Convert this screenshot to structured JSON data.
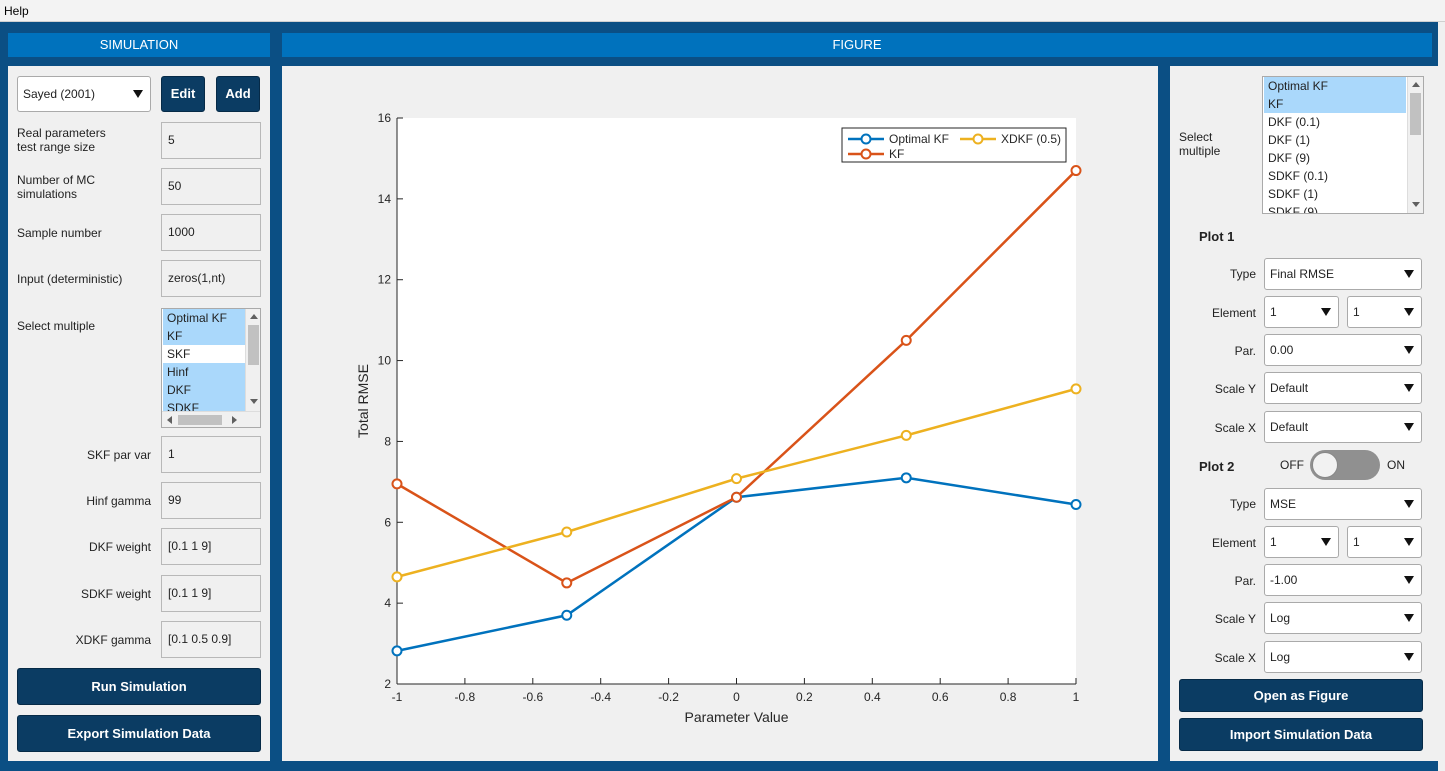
{
  "menu": {
    "help": "Help"
  },
  "headers": {
    "simulation": "SIMULATION",
    "figure": "FIGURE"
  },
  "left": {
    "preset": "Sayed (2001)",
    "edit_label": "Edit",
    "add_label": "Add",
    "range_label_1": "Real parameters",
    "range_label_2": "test range size",
    "range_value": "5",
    "mc_label_1": "Number of MC",
    "mc_label_2": "simulations",
    "mc_value": "50",
    "sample_label": "Sample number",
    "sample_value": "1000",
    "input_label": "Input (deterministic)",
    "input_value": "zeros(1,nt)",
    "select_label": "Select multiple",
    "filters": [
      {
        "label": "Optimal KF",
        "selected": true
      },
      {
        "label": "KF",
        "selected": true
      },
      {
        "label": "SKF",
        "selected": false
      },
      {
        "label": "Hinf",
        "selected": true
      },
      {
        "label": "DKF",
        "selected": true
      },
      {
        "label": "SDKF",
        "selected": true
      }
    ],
    "skf_label": "SKF par var",
    "skf_value": "1",
    "hinf_label": "Hinf gamma",
    "hinf_value": "99",
    "dkf_label": "DKF weight",
    "dkf_value": "[0.1 1 9]",
    "sdkf_label": "SDKF weight",
    "sdkf_value": "[0.1 1 9]",
    "xdkf_label": "XDKF gamma",
    "xdkf_value": "[0.1 0.5 0.9]",
    "run_label": "Run Simulation",
    "export_label": "Export Simulation Data"
  },
  "right": {
    "select_label_1": "Select",
    "select_label_2": "multiple",
    "series_list": [
      {
        "label": "Optimal KF",
        "selected": true
      },
      {
        "label": "KF",
        "selected": true
      },
      {
        "label": "DKF (0.1)",
        "selected": false
      },
      {
        "label": "DKF (1)",
        "selected": false
      },
      {
        "label": "DKF (9)",
        "selected": false
      },
      {
        "label": "SDKF (0.1)",
        "selected": false
      },
      {
        "label": "SDKF (1)",
        "selected": false
      },
      {
        "label": "SDKF (9)",
        "selected": false
      }
    ],
    "plot1": {
      "title": "Plot 1",
      "type_label": "Type",
      "type_value": "Final RMSE",
      "element_label": "Element",
      "element_value_1": "1",
      "element_value_2": "1",
      "par_label": "Par.",
      "par_value": "0.00",
      "scale_y_label": "Scale Y",
      "scale_y_value": "Default",
      "scale_x_label": "Scale X",
      "scale_x_value": "Default"
    },
    "plot2": {
      "title": "Plot 2",
      "toggle_off": "OFF",
      "toggle_on": "ON",
      "type_label": "Type",
      "type_value": "MSE",
      "element_label": "Element",
      "element_value_1": "1",
      "element_value_2": "1",
      "par_label": "Par.",
      "par_value": "-1.00",
      "scale_y_label": "Scale Y",
      "scale_y_value": "Log",
      "scale_x_label": "Scale X",
      "scale_x_value": "Log"
    },
    "open_label": "Open as Figure",
    "import_label": "Import Simulation Data"
  },
  "chart_data": {
    "type": "line",
    "title": "",
    "xlabel": "Parameter Value",
    "ylabel": "Total RMSE",
    "xlim": [
      -1,
      1
    ],
    "ylim": [
      2,
      16
    ],
    "xticks": [
      -1,
      -0.8,
      -0.6,
      -0.4,
      -0.2,
      0,
      0.2,
      0.4,
      0.6,
      0.8,
      1
    ],
    "yticks": [
      2,
      4,
      6,
      8,
      10,
      12,
      14,
      16
    ],
    "grid": false,
    "legend_position": "top-right",
    "x": [
      -1,
      -0.5,
      0,
      0.5,
      1
    ],
    "series": [
      {
        "name": "Optimal KF",
        "color": "#0072bd",
        "values": [
          2.82,
          3.7,
          6.62,
          7.1,
          6.44
        ]
      },
      {
        "name": "KF",
        "color": "#d95319",
        "values": [
          6.95,
          4.5,
          6.62,
          10.5,
          14.7
        ]
      },
      {
        "name": "XDKF (0.5)",
        "color": "#edb120",
        "values": [
          4.65,
          5.76,
          7.08,
          8.15,
          9.3
        ]
      }
    ]
  }
}
